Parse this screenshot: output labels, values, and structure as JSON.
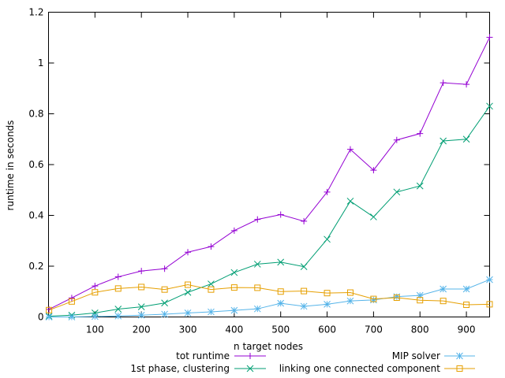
{
  "chart_data": {
    "type": "line",
    "title": "",
    "xlabel": "n target nodes",
    "ylabel": "runtime in seconds",
    "xlim": [
      0,
      950
    ],
    "ylim": [
      0,
      1.2
    ],
    "xticks": [
      100,
      200,
      300,
      400,
      500,
      600,
      700,
      800,
      900
    ],
    "xtick_labels": [
      "100",
      "200",
      "300",
      "400",
      "500",
      "600",
      "700",
      "800",
      "900"
    ],
    "yticks": [
      0,
      0.2,
      0.4,
      0.6,
      0.8,
      1,
      1.2
    ],
    "ytick_labels": [
      "0",
      "0.2",
      "0.4",
      "0.6",
      "0.8",
      "1",
      "1.2"
    ],
    "grid": false,
    "legend_position": "bottom",
    "x": [
      1,
      50,
      100,
      150,
      200,
      250,
      300,
      350,
      400,
      450,
      500,
      550,
      600,
      650,
      700,
      750,
      800,
      850,
      900,
      950
    ],
    "series": [
      {
        "name": "tot runtime",
        "color": "#9400d3",
        "marker": "plus",
        "values": [
          0.03,
          0.075,
          0.122,
          0.158,
          0.181,
          0.19,
          0.255,
          0.277,
          0.34,
          0.384,
          0.403,
          0.377,
          0.492,
          0.66,
          0.578,
          0.697,
          0.722,
          0.922,
          0.916,
          1.101
        ]
      },
      {
        "name": "1st phase, clustering",
        "color": "#009e73",
        "marker": "cross",
        "values": [
          0.003,
          0.007,
          0.016,
          0.031,
          0.04,
          0.055,
          0.097,
          0.13,
          0.175,
          0.208,
          0.216,
          0.198,
          0.306,
          0.456,
          0.394,
          0.492,
          0.516,
          0.693,
          0.7,
          0.83
        ]
      },
      {
        "name": "MIP solver",
        "color": "#56b4e9",
        "marker": "star",
        "values": [
          0.0,
          0.0,
          0.002,
          0.004,
          0.007,
          0.011,
          0.016,
          0.02,
          0.026,
          0.032,
          0.054,
          0.042,
          0.05,
          0.063,
          0.067,
          0.08,
          0.085,
          0.11,
          0.11,
          0.147
        ]
      },
      {
        "name": "linking one connected component",
        "color": "#e69f00",
        "marker": "square",
        "values": [
          0.027,
          0.061,
          0.097,
          0.112,
          0.118,
          0.108,
          0.127,
          0.108,
          0.116,
          0.115,
          0.1,
          0.102,
          0.094,
          0.096,
          0.071,
          0.076,
          0.066,
          0.063,
          0.048,
          0.05
        ]
      }
    ]
  }
}
